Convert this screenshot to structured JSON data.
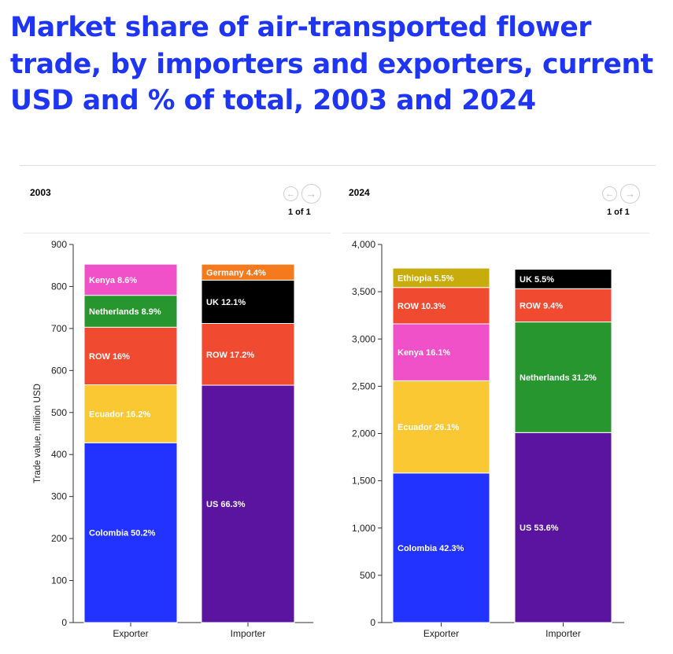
{
  "title": "Market share of air-transported flower trade, by importers and exporters, current USD and % of total, 2003 and 2024",
  "pager": {
    "prev_icon": "arrow-left-icon",
    "next_icon": "arrow-right-icon",
    "text": "1 of 1"
  },
  "colors": {
    "Colombia": "#2233ff",
    "Ecuador": "#f9c832",
    "ROW": "#f04a30",
    "Netherlands": "#27962f",
    "Kenya": "#f050c8",
    "US": "#5a14a0",
    "UK": "#000000",
    "Germany": "#f57a1e",
    "Ethiopia": "#c7ac0c"
  },
  "chart_data": [
    {
      "type": "bar",
      "stacked": true,
      "label": "2003",
      "ylabel": "Trade value, million USD",
      "ylim": [
        0,
        900
      ],
      "yticks": [
        0,
        100,
        200,
        300,
        400,
        500,
        600,
        700,
        800,
        900
      ],
      "ytick_labels": [
        "0",
        "100",
        "200",
        "300",
        "400",
        "500",
        "600",
        "700",
        "800",
        "900"
      ],
      "categories": [
        "Exporter",
        "Importer"
      ],
      "stacks": [
        {
          "category": "Exporter",
          "segments": [
            {
              "name": "Colombia",
              "label": "Colombia 50.2%",
              "value": 428
            },
            {
              "name": "Ecuador",
              "label": "Ecuador 16.2%",
              "value": 138
            },
            {
              "name": "ROW",
              "label": "ROW 16%",
              "value": 137
            },
            {
              "name": "Netherlands",
              "label": "Netherlands 8.9%",
              "value": 76
            },
            {
              "name": "Kenya",
              "label": "Kenya 8.6%",
              "value": 74
            }
          ]
        },
        {
          "category": "Importer",
          "segments": [
            {
              "name": "US",
              "label": "US 66.3%",
              "value": 565
            },
            {
              "name": "ROW",
              "label": "ROW 17.2%",
              "value": 147
            },
            {
              "name": "UK",
              "label": "UK 12.1%",
              "value": 103
            },
            {
              "name": "Germany",
              "label": "Germany 4.4%",
              "value": 38
            }
          ]
        }
      ]
    },
    {
      "type": "bar",
      "stacked": true,
      "label": "2024",
      "ylabel": "",
      "ylim": [
        0,
        4000
      ],
      "yticks": [
        0,
        500,
        1000,
        1500,
        2000,
        2500,
        3000,
        3500,
        4000
      ],
      "ytick_labels": [
        "0",
        "500",
        "1,000",
        "1,500",
        "2,000",
        "2,500",
        "3,000",
        "3,500",
        "4,000"
      ],
      "categories": [
        "Exporter",
        "Importer"
      ],
      "stacks": [
        {
          "category": "Exporter",
          "segments": [
            {
              "name": "Colombia",
              "label": "Colombia 42.3%",
              "value": 1582
            },
            {
              "name": "Ecuador",
              "label": "Ecuador 26.1%",
              "value": 976
            },
            {
              "name": "Kenya",
              "label": "Kenya 16.1%",
              "value": 602
            },
            {
              "name": "ROW",
              "label": "ROW 10.3%",
              "value": 385
            },
            {
              "name": "Ethiopia",
              "label": "Ethiopia 5.5%",
              "value": 205
            }
          ]
        },
        {
          "category": "Importer",
          "segments": [
            {
              "name": "US",
              "label": "US 53.6%",
              "value": 2010
            },
            {
              "name": "Netherlands",
              "label": "Netherlands 31.2%",
              "value": 1170
            },
            {
              "name": "ROW",
              "label": "ROW 9.4%",
              "value": 352
            },
            {
              "name": "UK",
              "label": "UK 5.5%",
              "value": 206
            }
          ]
        }
      ]
    }
  ]
}
